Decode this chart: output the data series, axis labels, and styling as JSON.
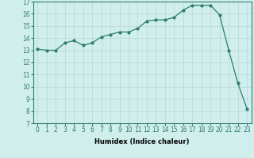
{
  "xlabel": "Humidex (Indice chaleur)",
  "x": [
    0,
    1,
    2,
    3,
    4,
    5,
    6,
    7,
    8,
    9,
    10,
    11,
    12,
    13,
    14,
    15,
    16,
    17,
    18,
    19,
    20,
    21,
    22,
    23
  ],
  "y": [
    13.1,
    13.0,
    13.0,
    13.6,
    13.8,
    13.4,
    13.6,
    14.1,
    14.3,
    14.5,
    14.5,
    14.8,
    15.4,
    15.5,
    15.5,
    15.7,
    16.3,
    16.7,
    16.7,
    16.7,
    15.9,
    13.0,
    10.3,
    8.2
  ],
  "line_color": "#2e7d6e",
  "bg_color": "#d0eeeb",
  "grid_color": "#b8d8d4",
  "ylim": [
    7,
    17
  ],
  "yticks": [
    7,
    8,
    9,
    10,
    11,
    12,
    13,
    14,
    15,
    16,
    17
  ],
  "xlim": [
    -0.5,
    23.5
  ],
  "xlabel_fontsize": 6.0,
  "tick_fontsize": 5.5
}
